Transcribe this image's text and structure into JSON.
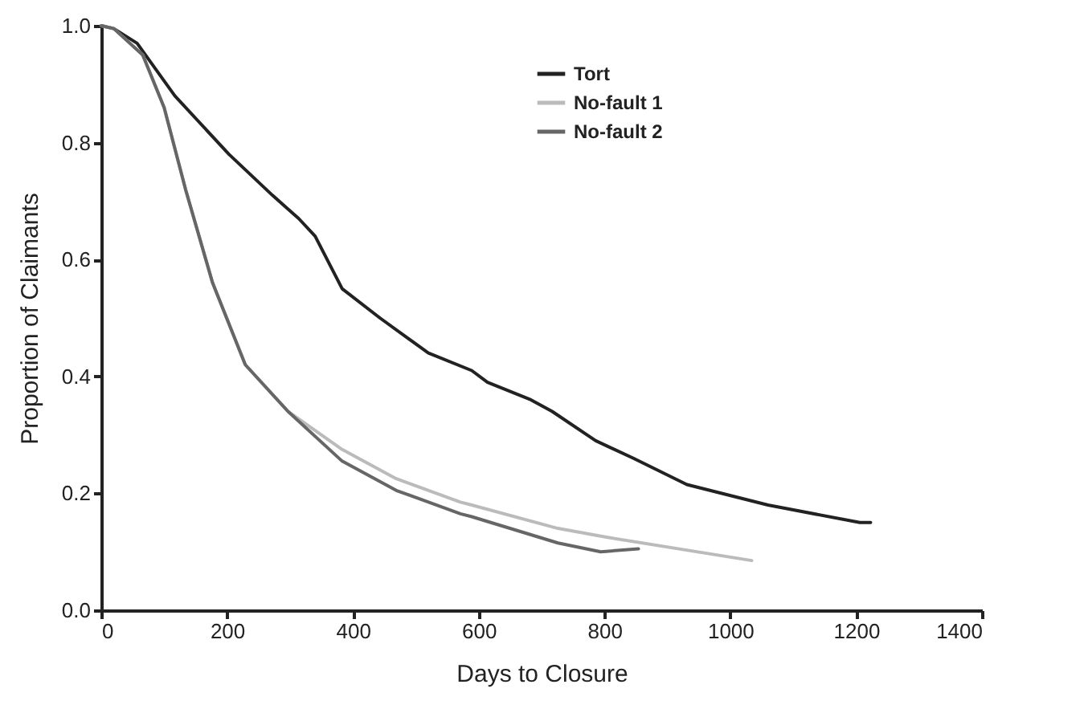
{
  "chart_data": {
    "type": "line",
    "xlabel": "Days to Closure",
    "ylabel": "Proportion of Claimants",
    "xlim": [
      0,
      1400
    ],
    "ylim": [
      0,
      1.0
    ],
    "xticks": [
      0,
      200,
      400,
      600,
      800,
      1000,
      1200,
      1400
    ],
    "yticks": [
      {
        "value": 0,
        "label": "0.0"
      },
      0.2,
      0.4,
      0.6,
      0.8,
      {
        "value": 1,
        "label": "1.0"
      }
    ],
    "grid": false,
    "legend": "top right",
    "line_style": "solid",
    "marker": "none",
    "series": [
      {
        "name": "Tort",
        "color": "#222222",
        "x": [
          0,
          20,
          57,
          117,
          203,
          272,
          314,
          340,
          383,
          443,
          520,
          589,
          614,
          683,
          717,
          786,
          846,
          931,
          1060,
          1206,
          1223
        ],
        "values": [
          1.0,
          0.995,
          0.97,
          0.88,
          0.78,
          0.71,
          0.67,
          0.64,
          0.55,
          0.5,
          0.44,
          0.41,
          0.39,
          0.36,
          0.34,
          0.29,
          0.26,
          0.215,
          0.18,
          0.15,
          0.15
        ]
      },
      {
        "name": "No-fault 1",
        "color": "#bbbbbb",
        "x": [
          0,
          20,
          66,
          100,
          134,
          177,
          229,
          297,
          383,
          469,
          571,
          589,
          726,
          803,
          1034
        ],
        "values": [
          1.0,
          0.995,
          0.95,
          0.86,
          0.72,
          0.56,
          0.42,
          0.34,
          0.275,
          0.225,
          0.185,
          0.18,
          0.14,
          0.125,
          0.085
        ]
      },
      {
        "name": "No-fault 2",
        "color": "#666666",
        "x": [
          0,
          20,
          66,
          100,
          134,
          177,
          229,
          297,
          383,
          469,
          571,
          589,
          726,
          794,
          854
        ],
        "values": [
          1.0,
          0.995,
          0.95,
          0.86,
          0.72,
          0.56,
          0.42,
          0.34,
          0.255,
          0.205,
          0.165,
          0.16,
          0.115,
          0.1,
          0.105
        ]
      }
    ]
  }
}
